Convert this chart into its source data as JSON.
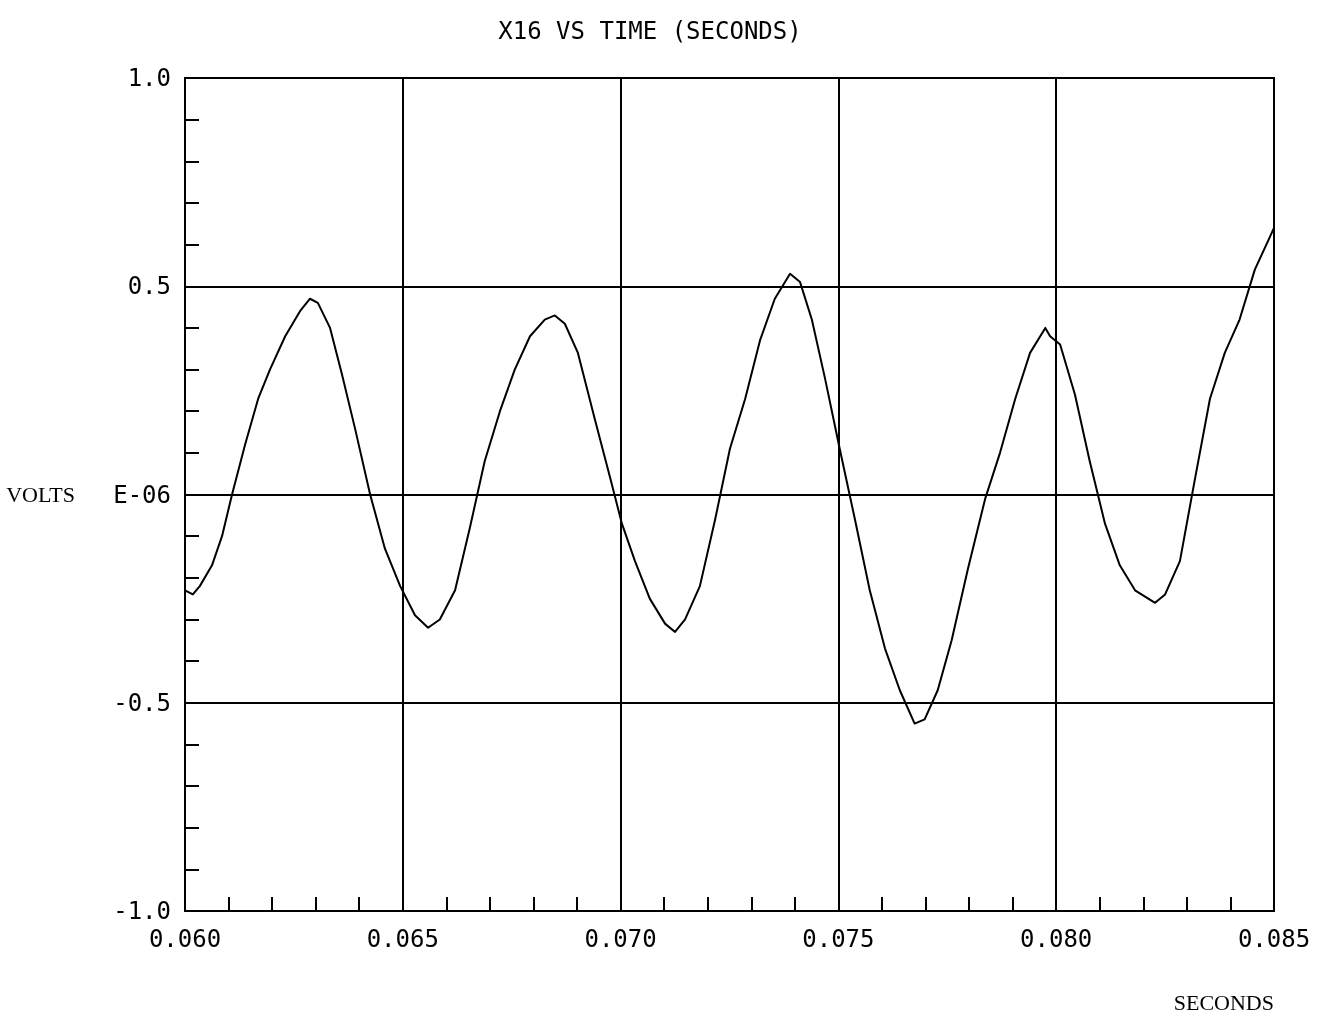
{
  "chart_data": {
    "type": "line",
    "title": "X16 VS TIME (SECONDS)",
    "xlabel": "SECONDS",
    "ylabel": "VOLTS",
    "grid": true,
    "marker": "none",
    "line_style": "solid",
    "color": "#000000",
    "xlim": [
      0.06,
      0.085
    ],
    "ylim": [
      -1,
      1
    ],
    "xticks": [
      {
        "value": 0.06,
        "label": "0.060"
      },
      {
        "value": 0.061,
        "label": null
      },
      {
        "value": 0.062,
        "label": null
      },
      {
        "value": 0.063,
        "label": null
      },
      {
        "value": 0.064,
        "label": null
      },
      {
        "value": 0.065,
        "label": "0.065"
      },
      {
        "value": 0.066,
        "label": null
      },
      {
        "value": 0.067,
        "label": null
      },
      {
        "value": 0.068,
        "label": null
      },
      {
        "value": 0.069,
        "label": null
      },
      {
        "value": 0.07,
        "label": "0.070"
      },
      {
        "value": 0.071,
        "label": null
      },
      {
        "value": 0.072,
        "label": null
      },
      {
        "value": 0.073,
        "label": null
      },
      {
        "value": 0.074,
        "label": null
      },
      {
        "value": 0.075,
        "label": "0.075"
      },
      {
        "value": 0.076,
        "label": null
      },
      {
        "value": 0.077,
        "label": null
      },
      {
        "value": 0.078,
        "label": null
      },
      {
        "value": 0.079,
        "label": null
      },
      {
        "value": 0.08,
        "label": "0.080"
      },
      {
        "value": 0.081,
        "label": null
      },
      {
        "value": 0.082,
        "label": null
      },
      {
        "value": 0.083,
        "label": null
      },
      {
        "value": 0.084,
        "label": null
      },
      {
        "value": 0.085,
        "label": "0.085"
      }
    ],
    "yticks": [
      {
        "value": -1,
        "label": "-1.0"
      },
      {
        "value": -0.9,
        "label": null
      },
      {
        "value": -0.8,
        "label": null
      },
      {
        "value": -0.7,
        "label": null
      },
      {
        "value": -0.6,
        "label": null
      },
      {
        "value": -0.5,
        "label": "-0.5"
      },
      {
        "value": -0.4,
        "label": null
      },
      {
        "value": -0.3,
        "label": null
      },
      {
        "value": -0.2,
        "label": null
      },
      {
        "value": -0.1,
        "label": null
      },
      {
        "value": 0,
        "label": "E-06"
      },
      {
        "value": 0.1,
        "label": null
      },
      {
        "value": 0.2,
        "label": null
      },
      {
        "value": 0.3,
        "label": null
      },
      {
        "value": 0.4,
        "label": null
      },
      {
        "value": 0.5,
        "label": "0.5"
      },
      {
        "value": 0.6,
        "label": null
      },
      {
        "value": 0.7,
        "label": null
      },
      {
        "value": 0.8,
        "label": null
      },
      {
        "value": 0.9,
        "label": null
      },
      {
        "value": 1,
        "label": "1.0"
      }
    ],
    "x": [
      0.06,
      0.06018,
      0.06034,
      0.06062,
      0.06085,
      0.06108,
      0.06138,
      0.06168,
      0.06195,
      0.0623,
      0.06264,
      0.06287,
      0.06305,
      0.06333,
      0.0636,
      0.0639,
      0.06425,
      0.06459,
      0.06494,
      0.06528,
      0.06558,
      0.06585,
      0.0662,
      0.06654,
      0.06688,
      0.06723,
      0.06757,
      0.06792,
      0.06826,
      0.06849,
      0.06872,
      0.06902,
      0.06941,
      0.06976,
      0.07003,
      0.07033,
      0.07067,
      0.07102,
      0.07125,
      0.07148,
      0.07182,
      0.07217,
      0.07251,
      0.07286,
      0.0732,
      0.07354,
      0.07389,
      0.07412,
      0.07439,
      0.07469,
      0.07503,
      0.07538,
      0.07572,
      0.07607,
      0.07641,
      0.07675,
      0.07698,
      0.07728,
      0.0776,
      0.07797,
      0.07837,
      0.07871,
      0.07906,
      0.0794,
      0.07975,
      0.07986,
      0.08009,
      0.08043,
      0.08077,
      0.08112,
      0.08146,
      0.08181,
      0.08227,
      0.0825,
      0.08284,
      0.08319,
      0.08353,
      0.08387,
      0.08421,
      0.08456,
      0.085
    ],
    "values": [
      -0.23,
      -0.24,
      -0.22,
      -0.17,
      -0.1,
      0,
      0.12,
      0.23,
      0.3,
      0.38,
      0.44,
      0.47,
      0.46,
      0.4,
      0.29,
      0.16,
      0,
      -0.13,
      -0.22,
      -0.29,
      -0.32,
      -0.3,
      -0.23,
      -0.08,
      0.08,
      0.2,
      0.3,
      0.38,
      0.42,
      0.43,
      0.41,
      0.34,
      0.18,
      0.04,
      -0.07,
      -0.16,
      -0.25,
      -0.31,
      -0.33,
      -0.3,
      -0.22,
      -0.06,
      0.11,
      0.23,
      0.37,
      0.47,
      0.53,
      0.51,
      0.42,
      0.28,
      0.11,
      -0.06,
      -0.23,
      -0.37,
      -0.47,
      -0.55,
      -0.54,
      -0.47,
      -0.35,
      -0.18,
      -0.01,
      0.1,
      0.23,
      0.34,
      0.4,
      0.38,
      0.36,
      0.24,
      0.08,
      -0.07,
      -0.17,
      -0.23,
      -0.26,
      -0.24,
      -0.16,
      0.04,
      0.23,
      0.34,
      0.42,
      0.54,
      0.64
    ]
  }
}
